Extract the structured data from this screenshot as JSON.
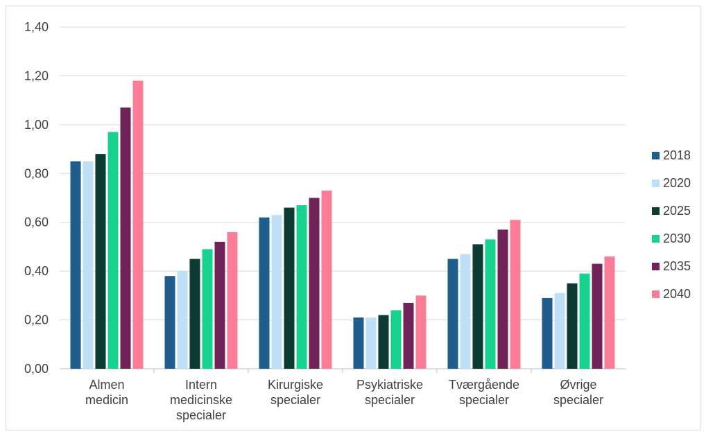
{
  "chart_data": {
    "type": "bar",
    "categories": [
      [
        "Almen",
        "medicin"
      ],
      [
        "Intern",
        "medicinske",
        "specialer"
      ],
      [
        "Kirurgiske",
        "specialer"
      ],
      [
        "Psykiatriske",
        "specialer"
      ],
      [
        "Tværgående",
        "specialer"
      ],
      [
        "Øvrige",
        "specialer"
      ]
    ],
    "series": [
      {
        "name": "2018",
        "color": "#1f5d8c",
        "values": [
          0.85,
          0.38,
          0.62,
          0.21,
          0.45,
          0.29
        ]
      },
      {
        "name": "2020",
        "color": "#bfe0f7",
        "values": [
          0.85,
          0.4,
          0.63,
          0.21,
          0.47,
          0.31
        ]
      },
      {
        "name": "2025",
        "color": "#0b3b33",
        "values": [
          0.88,
          0.45,
          0.66,
          0.22,
          0.51,
          0.35
        ]
      },
      {
        "name": "2030",
        "color": "#17d28f",
        "values": [
          0.97,
          0.49,
          0.67,
          0.24,
          0.53,
          0.39
        ]
      },
      {
        "name": "2035",
        "color": "#6e2456",
        "values": [
          1.07,
          0.52,
          0.7,
          0.27,
          0.57,
          0.43
        ]
      },
      {
        "name": "2040",
        "color": "#fb7c97",
        "values": [
          1.18,
          0.56,
          0.73,
          0.3,
          0.61,
          0.46
        ]
      }
    ],
    "y_ticks": [
      "0,00",
      "0,20",
      "0,40",
      "0,60",
      "0,80",
      "1,00",
      "1,20",
      "1,40"
    ],
    "ylim": [
      0,
      1.4
    ],
    "grid": true,
    "legend_position": "right"
  }
}
